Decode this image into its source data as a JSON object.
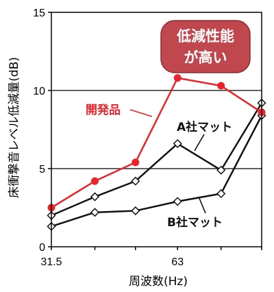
{
  "chart_data": {
    "type": "line",
    "xlabel": "周波数(Hz)",
    "ylabel": "床衝撃音レベル低減量(dB)",
    "ylim": [
      0,
      15
    ],
    "yticks": [
      0,
      5,
      10,
      15
    ],
    "x": [
      31.5,
      40,
      50,
      63,
      80,
      100
    ],
    "xticks": [
      {
        "value": 31.5,
        "label": "31.5"
      },
      {
        "value": 63,
        "label": "63"
      }
    ],
    "gridlines_y": [
      5,
      10
    ],
    "series": [
      {
        "name": "開発品",
        "color": "#e8232a",
        "marker": "circle",
        "values": [
          2.5,
          4.2,
          5.4,
          10.8,
          10.3,
          8.6
        ]
      },
      {
        "name": "A社マット",
        "color": "#111111",
        "marker": "diamond",
        "values": [
          2.0,
          3.2,
          4.2,
          6.6,
          4.9,
          9.2
        ]
      },
      {
        "name": "B社マット",
        "color": "#111111",
        "marker": "diamond",
        "values": [
          1.3,
          2.2,
          2.3,
          2.9,
          3.4,
          8.4
        ]
      }
    ],
    "callout": {
      "lines": [
        "低減性能",
        "が高い"
      ],
      "color": "#c0474e"
    }
  }
}
